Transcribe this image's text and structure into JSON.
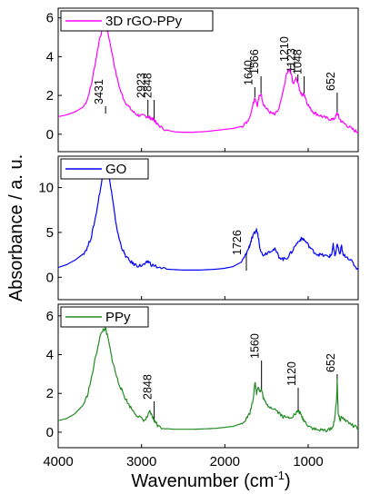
{
  "chart_data": {
    "type": "line",
    "xlabel": "Wavenumber (cm",
    "xlabel_sup": "-1",
    "xlabel_tail": ")",
    "ylabel": "Absorbance / a. u.",
    "xlim": [
      4000,
      400
    ],
    "x_ticks": [
      4000,
      3000,
      2000,
      1000
    ],
    "x_tick_labels": [
      "4000",
      "3000",
      "2000",
      "1000"
    ],
    "panels": [
      {
        "name": "3D rGO-PPy",
        "color": "#ff00ff",
        "ylim": [
          -0.9,
          6.5
        ],
        "y_ticks": [
          0,
          2,
          4,
          6
        ],
        "y_tick_labels": [
          "0",
          "2",
          "4",
          "6"
        ],
        "x": [
          4000,
          3900,
          3800,
          3700,
          3650,
          3600,
          3550,
          3500,
          3460,
          3431,
          3400,
          3350,
          3300,
          3250,
          3200,
          3150,
          3100,
          3050,
          3000,
          2960,
          2923,
          2900,
          2870,
          2848,
          2820,
          2800,
          2700,
          2600,
          2500,
          2400,
          2300,
          2200,
          2100,
          2000,
          1900,
          1800,
          1750,
          1700,
          1660,
          1640,
          1610,
          1590,
          1566,
          1540,
          1500,
          1450,
          1400,
          1350,
          1300,
          1260,
          1230,
          1210,
          1180,
          1150,
          1123,
          1100,
          1070,
          1048,
          1020,
          980,
          940,
          900,
          850,
          800,
          750,
          700,
          670,
          652,
          630,
          600,
          550,
          500,
          450,
          400
        ],
        "y": [
          0.9,
          1.0,
          1.15,
          1.4,
          1.8,
          2.6,
          3.8,
          5.0,
          5.5,
          5.6,
          5.2,
          4.1,
          3.0,
          2.2,
          1.7,
          1.4,
          1.15,
          1.0,
          0.95,
          0.95,
          0.9,
          0.85,
          0.8,
          0.7,
          0.6,
          0.45,
          0.22,
          0.12,
          0.1,
          0.1,
          0.12,
          0.15,
          0.2,
          0.25,
          0.3,
          0.4,
          0.55,
          0.9,
          1.6,
          1.9,
          1.5,
          1.9,
          2.1,
          1.6,
          1.3,
          1.1,
          1.0,
          1.3,
          2.2,
          3.1,
          3.3,
          3.2,
          2.6,
          2.9,
          2.7,
          2.2,
          2.0,
          2.1,
          1.7,
          1.35,
          1.15,
          1.05,
          0.95,
          0.85,
          0.8,
          0.75,
          0.9,
          1.1,
          0.85,
          0.65,
          0.5,
          0.35,
          0.2,
          0.1
        ],
        "annotations": [
          {
            "label": "3431",
            "x": 3431
          },
          {
            "label": "2923",
            "x": 2923
          },
          {
            "label": "2848",
            "x": 2848
          },
          {
            "label": "1640",
            "x": 1640
          },
          {
            "label": "1566",
            "x": 1566
          },
          {
            "label": "1210",
            "x": 1210
          },
          {
            "label": "1123",
            "x": 1123
          },
          {
            "label": "1048",
            "x": 1048
          },
          {
            "label": "652",
            "x": 652
          }
        ]
      },
      {
        "name": "GO",
        "color": "#0000ff",
        "ylim": [
          -2.5,
          13.5
        ],
        "y_ticks": [
          0,
          5,
          10
        ],
        "y_tick_labels": [
          "0",
          "5",
          "10"
        ],
        "x": [
          4000,
          3900,
          3800,
          3700,
          3650,
          3600,
          3550,
          3500,
          3460,
          3430,
          3400,
          3360,
          3320,
          3280,
          3240,
          3200,
          3150,
          3100,
          3050,
          3000,
          2950,
          2920,
          2880,
          2800,
          2700,
          2600,
          2500,
          2400,
          2300,
          2200,
          2100,
          2000,
          1900,
          1800,
          1760,
          1726,
          1700,
          1680,
          1650,
          1620,
          1600,
          1580,
          1550,
          1500,
          1450,
          1400,
          1350,
          1300,
          1250,
          1200,
          1150,
          1100,
          1070,
          1050,
          1000,
          950,
          900,
          850,
          800,
          750,
          720,
          700,
          680,
          650,
          620,
          600,
          580,
          550,
          500,
          450,
          400
        ],
        "y": [
          1.1,
          1.4,
          1.9,
          2.6,
          3.3,
          4.6,
          6.8,
          9.5,
          11.5,
          12.3,
          11.8,
          9.5,
          6.8,
          4.7,
          3.4,
          2.5,
          1.9,
          1.5,
          1.3,
          1.3,
          1.5,
          1.8,
          1.4,
          1.1,
          0.9,
          0.85,
          0.8,
          0.8,
          0.8,
          0.85,
          0.9,
          1.0,
          1.2,
          1.7,
          2.3,
          3.0,
          3.6,
          4.2,
          4.8,
          5.3,
          4.6,
          3.4,
          2.5,
          2.7,
          3.0,
          3.1,
          2.3,
          2.0,
          2.2,
          2.8,
          3.6,
          4.2,
          4.3,
          4.2,
          3.6,
          3.0,
          2.6,
          2.5,
          2.4,
          2.3,
          2.5,
          3.6,
          2.3,
          3.7,
          2.5,
          3.5,
          2.4,
          2.4,
          2.0,
          1.4,
          0.8
        ]
      },
      {
        "name": "PPy",
        "color": "#228b22",
        "ylim": [
          -0.8,
          6.6
        ],
        "y_ticks": [
          0,
          2,
          4,
          6
        ],
        "y_tick_labels": [
          "0",
          "2",
          "4",
          "6"
        ],
        "x": [
          4000,
          3900,
          3800,
          3700,
          3650,
          3600,
          3550,
          3500,
          3460,
          3430,
          3400,
          3360,
          3320,
          3280,
          3240,
          3200,
          3150,
          3100,
          3050,
          3000,
          2960,
          2930,
          2900,
          2870,
          2848,
          2820,
          2800,
          2700,
          2600,
          2500,
          2400,
          2300,
          2200,
          2100,
          2000,
          1900,
          1800,
          1750,
          1700,
          1660,
          1640,
          1620,
          1600,
          1580,
          1560,
          1540,
          1500,
          1450,
          1400,
          1350,
          1300,
          1250,
          1200,
          1150,
          1120,
          1100,
          1070,
          1050,
          1000,
          950,
          900,
          850,
          800,
          750,
          700,
          680,
          660,
          652,
          640,
          620,
          600,
          550,
          500,
          450,
          400
        ],
        "y": [
          0.6,
          0.7,
          0.95,
          1.4,
          1.9,
          2.8,
          3.9,
          4.9,
          5.3,
          5.3,
          4.8,
          3.9,
          3.2,
          2.6,
          2.2,
          1.8,
          1.4,
          1.1,
          0.85,
          0.7,
          0.6,
          0.8,
          1.05,
          0.8,
          0.6,
          0.45,
          0.3,
          0.18,
          0.15,
          0.15,
          0.15,
          0.16,
          0.18,
          0.2,
          0.25,
          0.3,
          0.45,
          0.65,
          1.0,
          1.7,
          2.6,
          2.0,
          2.4,
          2.1,
          2.2,
          1.8,
          1.4,
          1.3,
          1.2,
          1.0,
          0.8,
          0.75,
          0.8,
          0.95,
          1.1,
          1.0,
          0.75,
          0.6,
          0.35,
          0.22,
          0.12,
          0.1,
          0.1,
          0.12,
          0.3,
          0.8,
          1.6,
          2.7,
          1.0,
          0.6,
          0.8,
          0.6,
          0.45,
          0.3,
          0.2
        ],
        "annotations": [
          {
            "label": "2848",
            "x": 2848
          },
          {
            "label": "1560",
            "x": 1560
          },
          {
            "label": "1120",
            "x": 1120
          },
          {
            "label": "652",
            "x": 652
          }
        ]
      }
    ]
  }
}
